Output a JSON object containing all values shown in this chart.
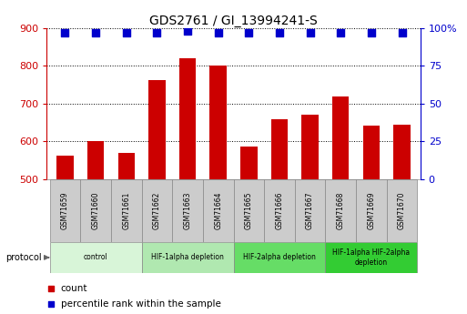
{
  "title": "GDS2761 / GI_13994241-S",
  "samples": [
    "GSM71659",
    "GSM71660",
    "GSM71661",
    "GSM71662",
    "GSM71663",
    "GSM71664",
    "GSM71665",
    "GSM71666",
    "GSM71667",
    "GSM71668",
    "GSM71669",
    "GSM71670"
  ],
  "counts": [
    563,
    600,
    570,
    762,
    820,
    800,
    587,
    658,
    670,
    718,
    642,
    645
  ],
  "percentile_ranks": [
    97,
    97,
    97,
    97,
    98,
    97,
    97,
    97,
    97,
    97,
    97,
    97
  ],
  "ylim_left": [
    500,
    900
  ],
  "ylim_right": [
    0,
    100
  ],
  "yticks_left": [
    500,
    600,
    700,
    800,
    900
  ],
  "yticks_right": [
    0,
    25,
    50,
    75,
    100
  ],
  "bar_color": "#cc0000",
  "dot_color": "#0000cc",
  "grid_color": "#000000",
  "protocol_groups": [
    {
      "label": "control",
      "start": 0,
      "end": 2,
      "color": "#d8f5d8"
    },
    {
      "label": "HIF-1alpha depletion",
      "start": 3,
      "end": 5,
      "color": "#b0e8b0"
    },
    {
      "label": "HIF-2alpha depletion",
      "start": 6,
      "end": 8,
      "color": "#66dd66"
    },
    {
      "label": "HIF-1alpha HIF-2alpha\ndepletion",
      "start": 9,
      "end": 11,
      "color": "#33cc33"
    }
  ],
  "legend_items": [
    {
      "label": "count",
      "color": "#cc0000"
    },
    {
      "label": "percentile rank within the sample",
      "color": "#0000cc"
    }
  ],
  "ylabel_left_color": "#cc0000",
  "ylabel_right_color": "#0000cc",
  "bar_width": 0.55,
  "dot_size": 30,
  "sample_box_color": "#cccccc",
  "sample_box_edge": "#999999"
}
